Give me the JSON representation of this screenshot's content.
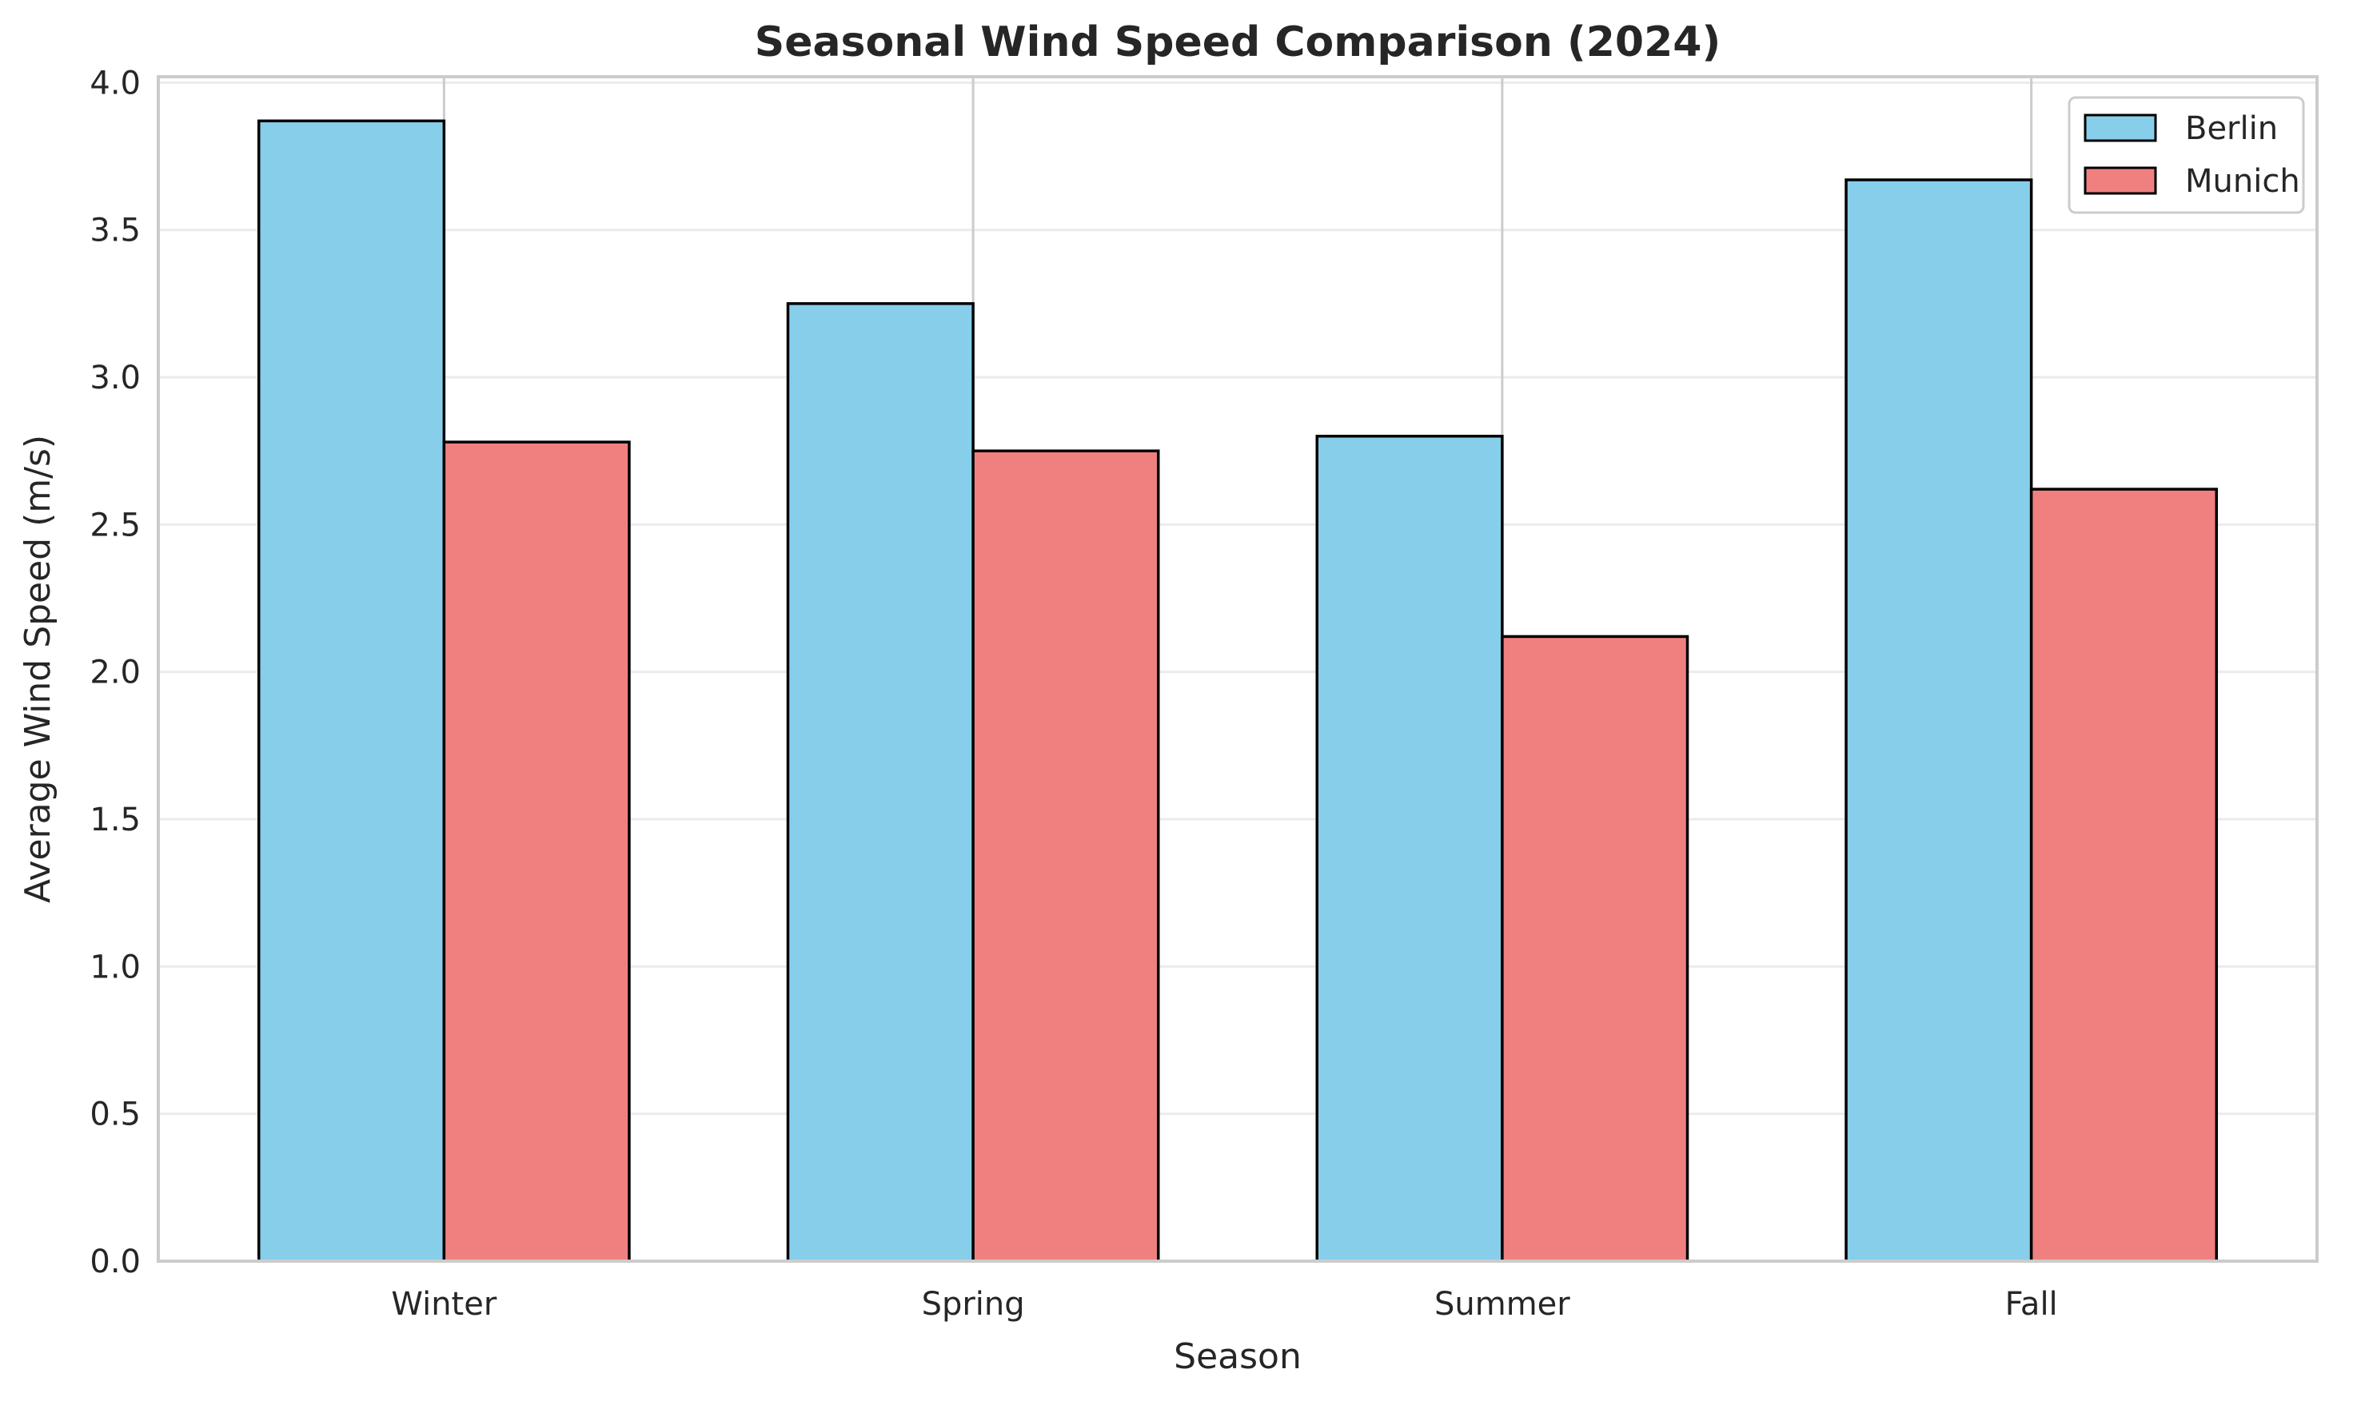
{
  "chart_data": {
    "type": "bar",
    "title": "Seasonal Wind Speed Comparison (2024)",
    "xlabel": "Season",
    "ylabel": "Average Wind Speed (m/s)",
    "categories": [
      "Winter",
      "Spring",
      "Summer",
      "Fall"
    ],
    "series": [
      {
        "name": "Berlin",
        "values": [
          3.87,
          3.25,
          2.8,
          3.67
        ],
        "color": "#87CEEB"
      },
      {
        "name": "Munich",
        "values": [
          2.78,
          2.75,
          2.12,
          2.62
        ],
        "color": "#F08080"
      }
    ],
    "ylim": [
      0,
      4.02
    ],
    "yticks": [
      "0.0",
      "0.5",
      "1.0",
      "1.5",
      "2.0",
      "2.5",
      "3.0",
      "3.5",
      "4.0"
    ],
    "grid": true,
    "legend_position": "top-right",
    "colors": {
      "bar_edge": "#000000",
      "grid": "#ebebeb",
      "vertical_grid": "#cccccc",
      "spine": "#cccccc",
      "text": "#262626"
    }
  }
}
